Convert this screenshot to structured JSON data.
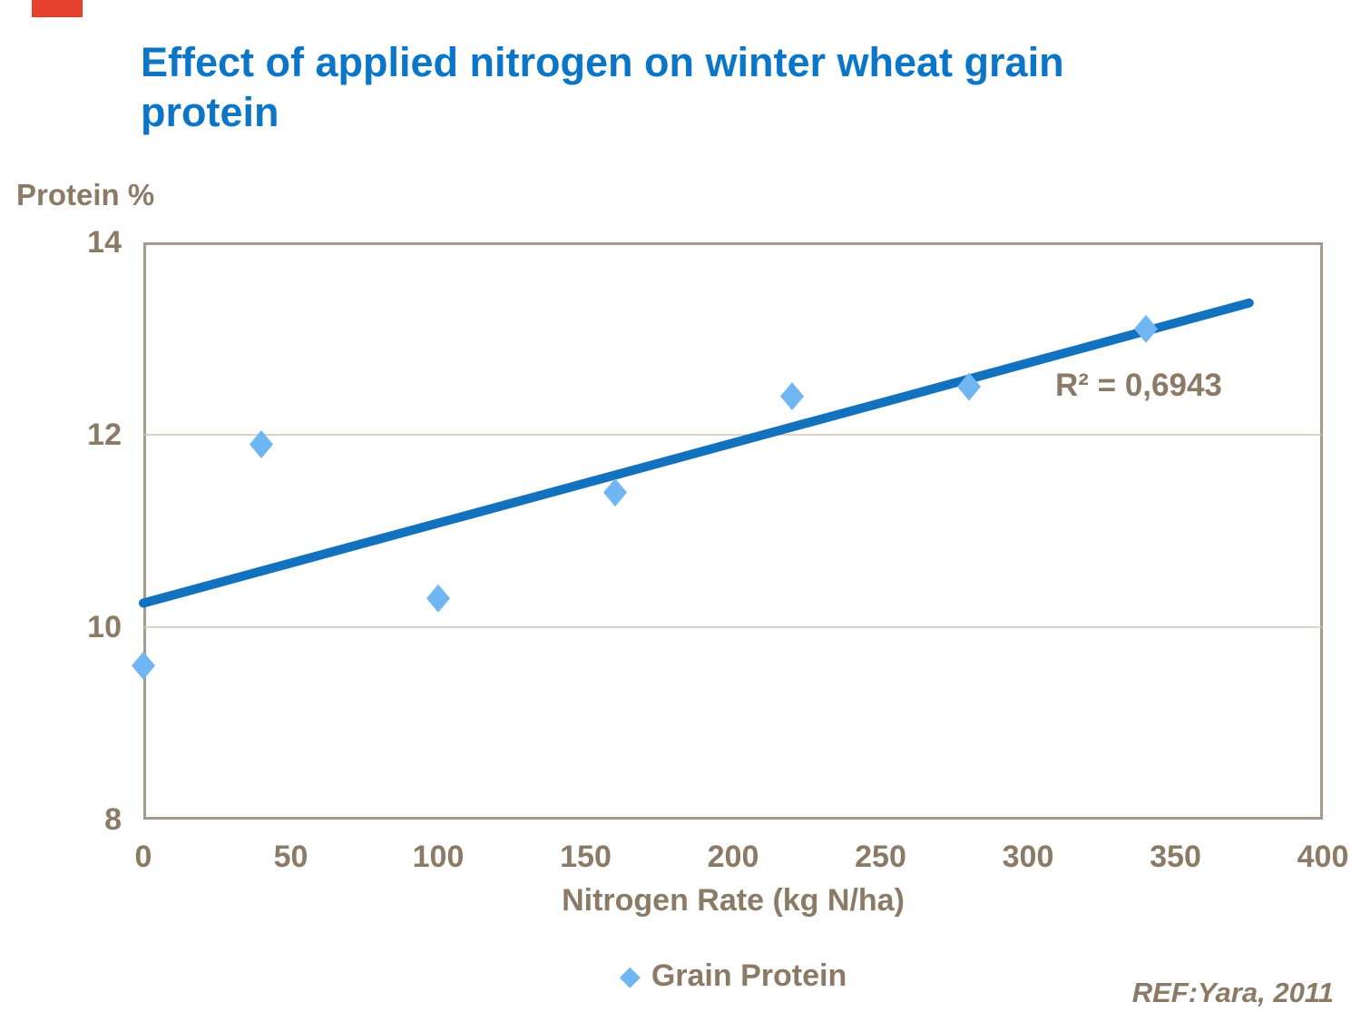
{
  "slide": {
    "reference": "REF:Yara, 2011"
  },
  "colors": {
    "accent_bar": "#e8402e",
    "title_blue": "#0b76c7",
    "axis_text_brown": "#8a7a66",
    "plot_border": "#a69b8b",
    "gridline": "#cdc5b8",
    "trend_line": "#1372bd",
    "marker_fill": "#6fb6f3"
  },
  "chart_data": {
    "type": "scatter",
    "title": "Effect of applied nitrogen on winter wheat grain protein",
    "xlabel": "Nitrogen Rate (kg N/ha)",
    "ylabel": "Protein %",
    "xlim": [
      0,
      400
    ],
    "ylim": [
      8,
      14
    ],
    "xticks": [
      0,
      50,
      100,
      150,
      200,
      250,
      300,
      350,
      400
    ],
    "yticks": [
      14,
      12,
      10,
      8
    ],
    "grid": "horizontal",
    "legend_position": "bottom",
    "series": [
      {
        "name": "Grain Protein",
        "marker": "diamond",
        "x": [
          0,
          40,
          100,
          160,
          220,
          280,
          340
        ],
        "y": [
          9.6,
          11.9,
          10.3,
          11.4,
          12.4,
          12.5,
          13.1
        ]
      }
    ],
    "trendline": {
      "x_start": 0,
      "y_start": 10.25,
      "x_end": 375,
      "y_end": 13.37,
      "r2_label": "R² = 0,6943"
    }
  }
}
